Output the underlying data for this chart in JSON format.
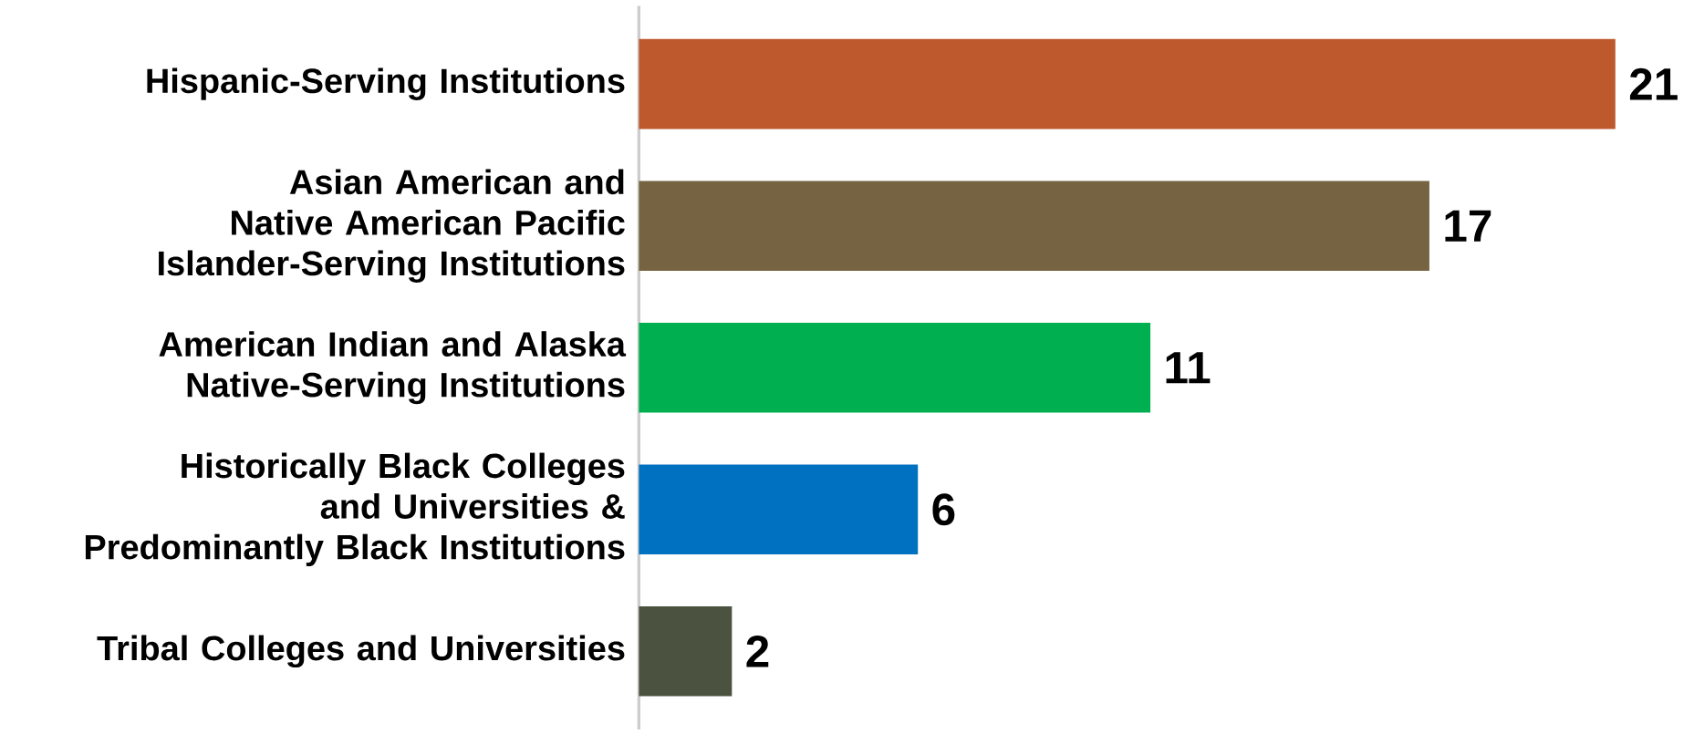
{
  "chart_data": {
    "type": "bar",
    "orientation": "horizontal",
    "data_labels": true,
    "categories": [
      "Hispanic-Serving Institutions",
      "Asian American and Native American Pacific Islander-Serving Institutions",
      "American Indian and Alaska Native-Serving Institutions",
      "Historically Black Colleges and Universities & Predominantly Black Institutions",
      "Tribal Colleges and Universities"
    ],
    "values": [
      21,
      17,
      11,
      6,
      2
    ],
    "colors": [
      "#be582d",
      "#756342",
      "#00b050",
      "#0070c0",
      "#4b5340"
    ]
  }
}
